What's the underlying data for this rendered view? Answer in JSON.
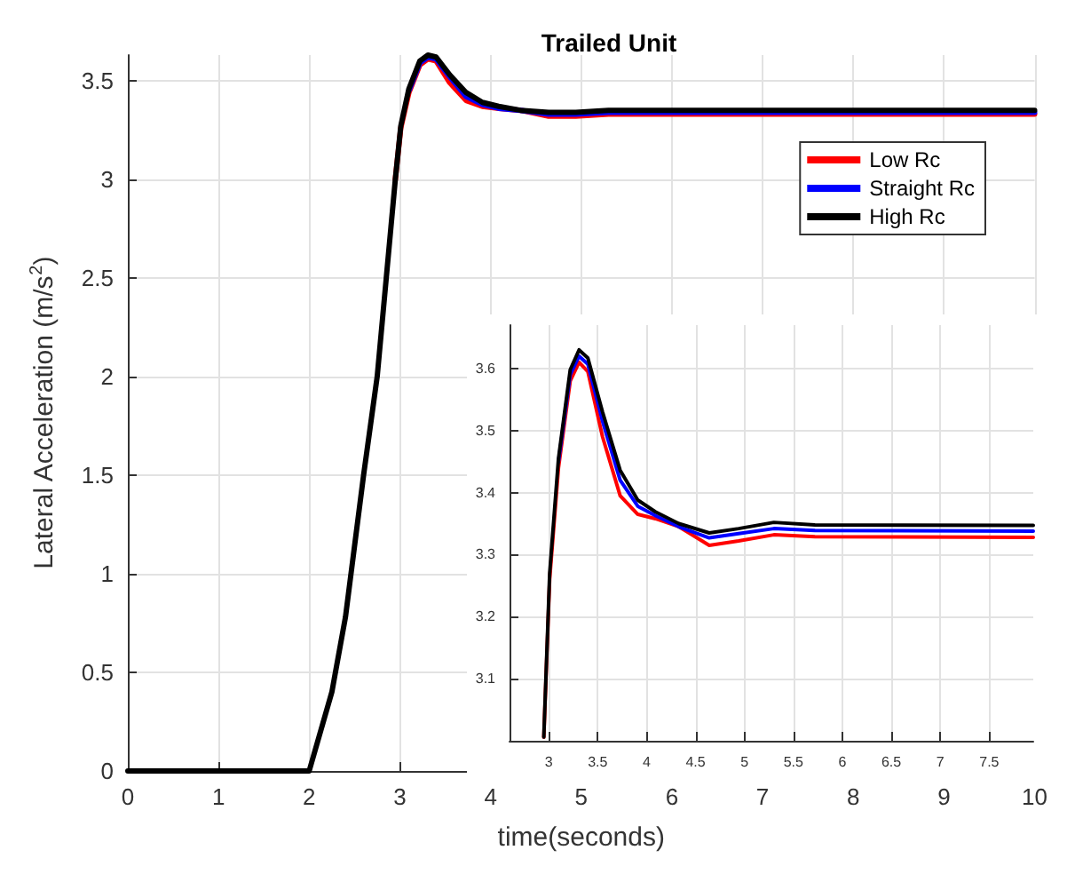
{
  "chart_data": [
    {
      "type": "line",
      "title": "Trailed Unit",
      "xlabel": "time(seconds)",
      "ylabel": "Lateral Acceleration (m/s$^{2}$)",
      "xlim": [
        0,
        10
      ],
      "xticks": [
        0,
        1,
        2,
        3,
        4,
        5,
        6,
        7,
        8,
        9,
        10
      ],
      "ylim": [
        0,
        3.63
      ],
      "yticks": [
        0,
        0.5,
        1,
        1.5,
        2,
        2.5,
        3,
        3.5
      ],
      "grid": true,
      "legend": "top right",
      "marker": "none",
      "line_style": "solid",
      "series": [
        {
          "name": "Low Rc",
          "color": "#ff0000",
          "x": [
            2.95,
            3.01,
            3.1,
            3.22,
            3.31,
            3.4,
            3.55,
            3.73,
            3.91,
            4.09,
            4.33,
            4.64,
            4.94,
            5.3,
            5.72,
            10
          ],
          "values": [
            3.0,
            3.26,
            3.44,
            3.58,
            3.61,
            3.6,
            3.49,
            3.4,
            3.37,
            3.36,
            3.35,
            3.32,
            3.32,
            3.33,
            3.33,
            3.33
          ]
        },
        {
          "name": "Straight Rc",
          "color": "#0000ff",
          "x": [
            3.1,
            3.22,
            3.31,
            3.4,
            3.55,
            3.73,
            3.91,
            4.09,
            4.33,
            4.64,
            4.94,
            5.3,
            5.72,
            10
          ],
          "values": [
            3.45,
            3.59,
            3.62,
            3.61,
            3.52,
            3.42,
            3.38,
            3.36,
            3.35,
            3.33,
            3.33,
            3.34,
            3.34,
            3.34
          ]
        },
        {
          "name": "High Rc",
          "color": "#000000",
          "x": [
            0,
            2,
            2.25,
            2.4,
            2.6,
            2.75,
            2.85,
            2.95,
            3.01,
            3.1,
            3.22,
            3.31,
            3.4,
            3.55,
            3.73,
            3.91,
            4.09,
            4.33,
            4.64,
            4.94,
            5.3,
            5.72,
            10
          ],
          "values": [
            0,
            0,
            0.4,
            0.78,
            1.5,
            2.0,
            2.5,
            3.0,
            3.27,
            3.46,
            3.6,
            3.63,
            3.62,
            3.53,
            3.44,
            3.39,
            3.37,
            3.35,
            3.34,
            3.34,
            3.35,
            3.35,
            3.35
          ]
        }
      ]
    },
    {
      "type": "line",
      "xlim": [
        2.6,
        7.95
      ],
      "xticks": [
        3,
        3.5,
        4,
        4.5,
        5,
        5.5,
        6,
        6.5,
        7,
        7.5
      ],
      "ylim": [
        3.0,
        3.67
      ],
      "yticks": [
        3.1,
        3.2,
        3.3,
        3.4,
        3.5,
        3.6
      ],
      "grid": true,
      "marker": "none",
      "line_style": "solid",
      "series": [
        {
          "color": "#ff0000",
          "x": [
            2.95,
            3.01,
            3.1,
            3.22,
            3.31,
            3.4,
            3.55,
            3.73,
            3.91,
            4.09,
            4.33,
            4.64,
            4.94,
            5.3,
            5.72,
            7.95
          ],
          "values": [
            3.006,
            3.26,
            3.44,
            3.58,
            3.61,
            3.595,
            3.49,
            3.395,
            3.365,
            3.358,
            3.345,
            3.315,
            3.322,
            3.332,
            3.329,
            3.328
          ]
        },
        {
          "color": "#0000ff",
          "x": [
            3.1,
            3.22,
            3.31,
            3.4,
            3.55,
            3.73,
            3.91,
            4.09,
            4.33,
            4.64,
            4.94,
            5.3,
            5.72,
            7.95
          ],
          "values": [
            3.45,
            3.59,
            3.62,
            3.607,
            3.515,
            3.42,
            3.378,
            3.363,
            3.345,
            3.327,
            3.334,
            3.342,
            3.339,
            3.338
          ]
        },
        {
          "color": "#000000",
          "x": [
            2.95,
            3.01,
            3.1,
            3.22,
            3.31,
            3.4,
            3.55,
            3.73,
            3.91,
            4.09,
            4.33,
            4.64,
            4.94,
            5.3,
            5.72,
            7.95
          ],
          "values": [
            3.006,
            3.27,
            3.455,
            3.598,
            3.63,
            3.617,
            3.53,
            3.436,
            3.388,
            3.369,
            3.35,
            3.335,
            3.342,
            3.352,
            3.348,
            3.347
          ]
        }
      ]
    }
  ]
}
